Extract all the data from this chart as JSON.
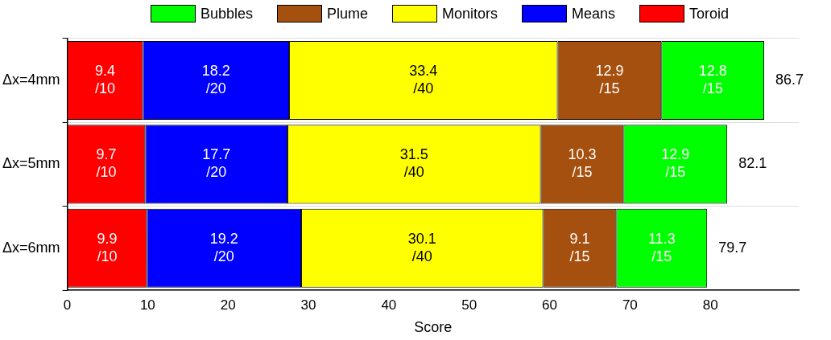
{
  "chart_data": {
    "type": "bar",
    "orientation": "horizontal",
    "stacked": true,
    "xlabel": "Score",
    "categories": [
      "Δx=4mm",
      "Δx=5mm",
      "Δx=6mm"
    ],
    "series": [
      {
        "name": "Toroid",
        "color": "#ff0000",
        "values": [
          9.4,
          9.7,
          9.9
        ]
      },
      {
        "name": "Means",
        "color": "#0000ff",
        "values": [
          18.2,
          17.7,
          19.2
        ]
      },
      {
        "name": "Monitors",
        "color": "#ffff00",
        "values": [
          33.4,
          31.5,
          30.1
        ]
      },
      {
        "name": "Plume",
        "color": "#a5500f",
        "values": [
          12.9,
          10.3,
          9.1
        ]
      },
      {
        "name": "Bubbles",
        "color": "#00ff00",
        "values": [
          12.8,
          12.9,
          11.3
        ]
      }
    ],
    "data_labels": true,
    "totals": [
      "86.7",
      "82.1",
      "79.7"
    ],
    "annotations": [
      "/10",
      "/20",
      "/40",
      "/15",
      "/15",
      "/10",
      "/20",
      "/40",
      "/15",
      "/15",
      "/10",
      "/20",
      "/40",
      "/15",
      "/15"
    ],
    "xlim": [
      0,
      91
    ],
    "xticks": [
      0,
      10,
      20,
      30,
      40,
      50,
      60,
      70,
      80
    ],
    "grid": "y",
    "legend": "top"
  }
}
